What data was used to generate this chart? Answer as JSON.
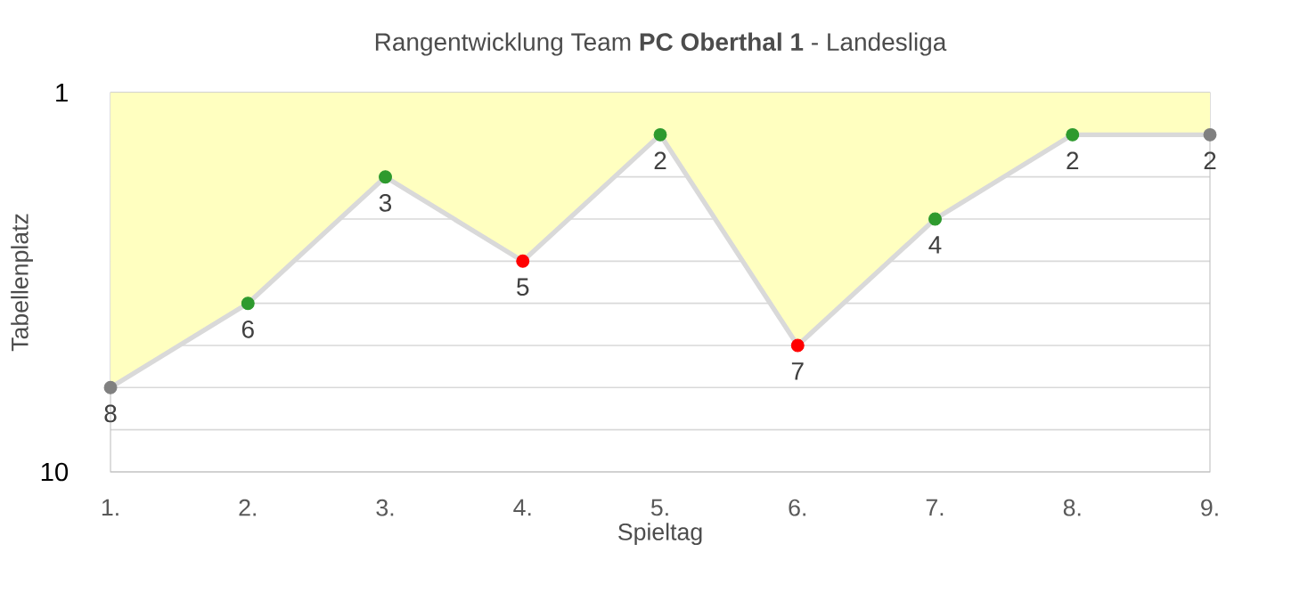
{
  "chart_data": {
    "type": "area",
    "title": "Rangentwicklung Team **PC Oberthal 1** - Landesliga",
    "xlabel": "Spieltag",
    "ylabel": "Tabellenplatz",
    "categories": [
      "1.",
      "2.",
      "3.",
      "4.",
      "5.",
      "6.",
      "7.",
      "8.",
      "9."
    ],
    "series": [
      {
        "color": "#ffffc0",
        "values": [
          8,
          6,
          3,
          5,
          2,
          7,
          4,
          2,
          2
        ],
        "colors": [
          "#808080",
          "#2e9a2e",
          "#2e9a2e",
          "#ff0000",
          "#2e9a2e",
          "#ff0000",
          "#2e9a2e",
          "#2e9a2e",
          "#808080"
        ]
      }
    ],
    "ylim": [
      10,
      1
    ],
    "yticks": [
      1,
      {
        "value": 2,
        "label": null
      },
      {
        "value": 3,
        "label": null
      },
      {
        "value": 4,
        "label": null
      },
      {
        "value": 5,
        "label": null
      },
      {
        "value": 6,
        "label": null
      },
      {
        "value": 7,
        "label": null
      },
      {
        "value": 8,
        "label": null
      },
      {
        "value": 9,
        "label": null
      },
      10
    ],
    "grid": "y",
    "marker": "circle",
    "data_labels": true
  }
}
